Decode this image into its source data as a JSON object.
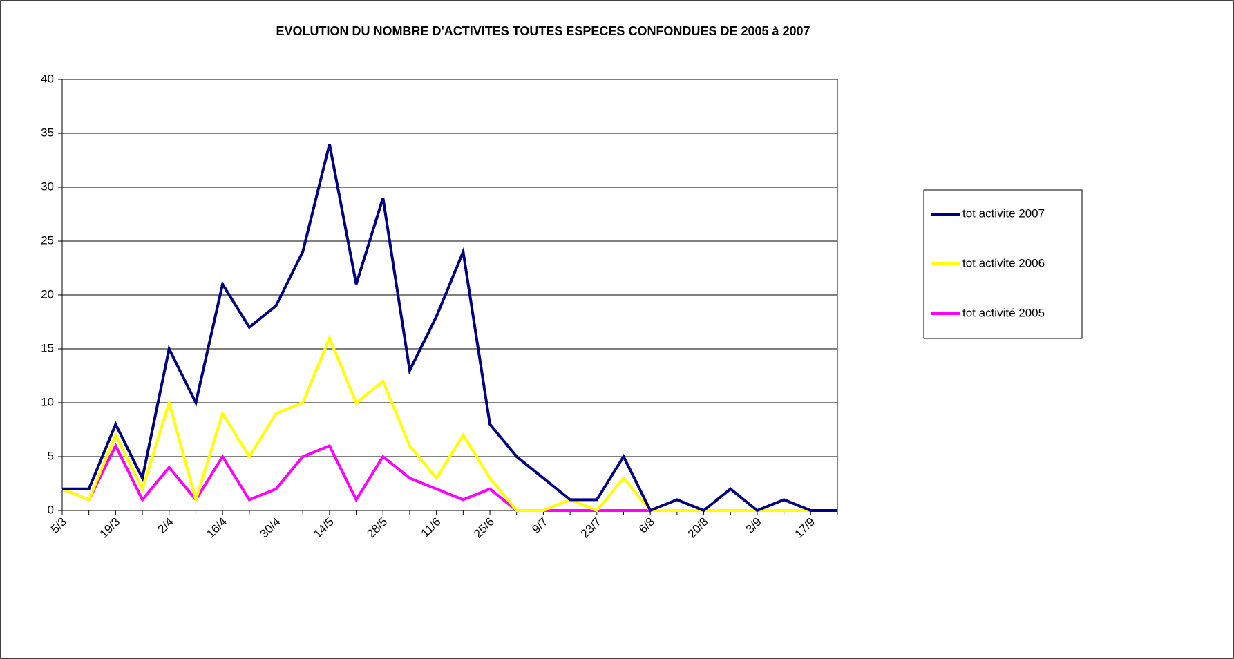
{
  "chart_data": {
    "type": "line",
    "title": "EVOLUTION DU NOMBRE D'ACTIVITES TOUTES ESPECES CONFONDUES DE 2005 à 2007",
    "categories": [
      "5/3",
      null,
      "19/3",
      null,
      "2/4",
      null,
      "16/4",
      null,
      "30/4",
      null,
      "14/5",
      null,
      "28/5",
      null,
      "11/6",
      null,
      "25/6",
      null,
      "9/7",
      null,
      "23/7",
      null,
      "6/8",
      null,
      "20/8",
      null,
      "3/9",
      null,
      "17/9",
      null
    ],
    "series": [
      {
        "name": "tot activite 2007",
        "color": "#000080",
        "values": [
          2,
          2,
          8,
          3,
          15,
          10,
          21,
          17,
          19,
          24,
          34,
          21,
          29,
          13,
          18,
          24,
          8,
          5,
          3,
          1,
          1,
          5,
          0,
          1,
          0,
          2,
          0,
          1,
          0,
          0
        ]
      },
      {
        "name": "tot activite 2006",
        "color": "#ffff00",
        "values": [
          2,
          1,
          7,
          2,
          10,
          1,
          9,
          5,
          9,
          10,
          16,
          10,
          12,
          6,
          3,
          7,
          3,
          0,
          0,
          1,
          0,
          3,
          0,
          0,
          0,
          0,
          0,
          0,
          0,
          0
        ]
      },
      {
        "name": "tot activité 2005",
        "color": "#ff00ff",
        "values": [
          2,
          1,
          6,
          1,
          4,
          1,
          5,
          1,
          2,
          5,
          6,
          1,
          5,
          3,
          2,
          1,
          2,
          0,
          0,
          0,
          0,
          0,
          0,
          0,
          0,
          0,
          0,
          0,
          0,
          0
        ]
      }
    ],
    "ylim": [
      0,
      40
    ],
    "yticks": [
      0,
      5,
      10,
      15,
      20,
      25,
      30,
      35,
      40
    ],
    "grid": true,
    "legend": "right"
  }
}
